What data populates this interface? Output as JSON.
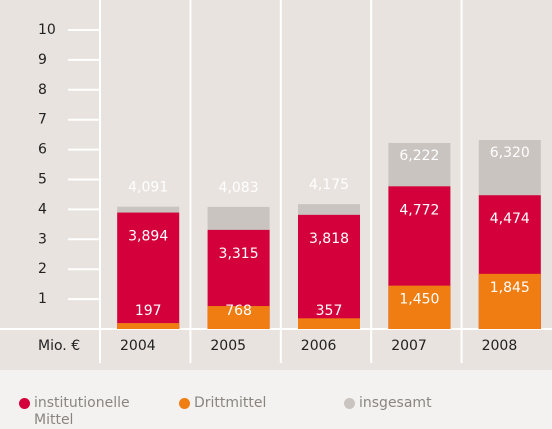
{
  "chart_data": {
    "type": "bar",
    "unit_label": "Mio. €",
    "categories": [
      "2004",
      "2005",
      "2006",
      "2007",
      "2008"
    ],
    "ylim": [
      0,
      10
    ],
    "yticks": [
      1,
      2,
      3,
      4,
      5,
      6,
      7,
      8,
      9,
      10
    ],
    "series": [
      {
        "name": "insgesamt",
        "color": "#c9c4c0",
        "values": [
          4.091,
          4.083,
          4.175,
          6.222,
          6.32
        ],
        "value_labels": [
          "4,091",
          "4,083",
          "4,175",
          "6,222",
          "6,320"
        ]
      },
      {
        "name": "institutionelle Mittel",
        "color": "#d4003b",
        "values": [
          3.894,
          3.315,
          3.818,
          4.772,
          4.474
        ],
        "value_labels": [
          "3,894",
          "3,315",
          "3,818",
          "4,772",
          "4,474"
        ]
      },
      {
        "name": "Drittmittel",
        "color": "#f07d12",
        "values": [
          0.197,
          0.768,
          0.357,
          1.45,
          1.845
        ],
        "value_labels": [
          "197",
          "768",
          "357",
          "1,450",
          "1,845"
        ]
      }
    ]
  }
}
